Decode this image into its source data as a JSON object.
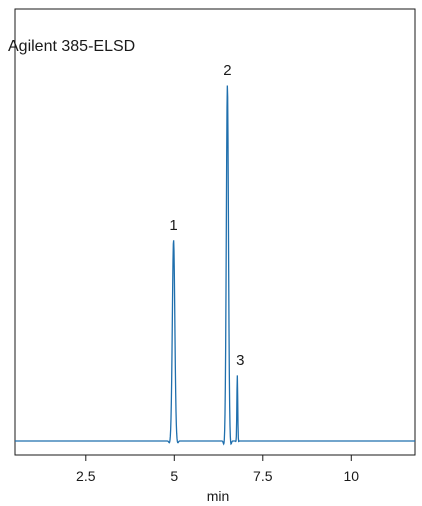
{
  "chart_data": {
    "type": "line",
    "title": "Agilent 385-ELSD",
    "xlabel": "min",
    "ylabel": "",
    "xlim": [
      0.5,
      11.8
    ],
    "ylim": [
      0,
      1.0
    ],
    "x_ticks": [
      2.5,
      5,
      7.5,
      10
    ],
    "x_tick_labels": [
      "2.5",
      "5",
      "7.5",
      "10"
    ],
    "grid": false,
    "line_color": "#1f6fad",
    "baseline": 0.0,
    "peaks": [
      {
        "label": "1",
        "x": 4.98,
        "height": 0.565,
        "width": 0.035
      },
      {
        "label": "2",
        "x": 6.5,
        "height": 1.0,
        "width": 0.03
      },
      {
        "label": "3",
        "x": 6.78,
        "height": 0.185,
        "width": 0.012
      }
    ]
  }
}
